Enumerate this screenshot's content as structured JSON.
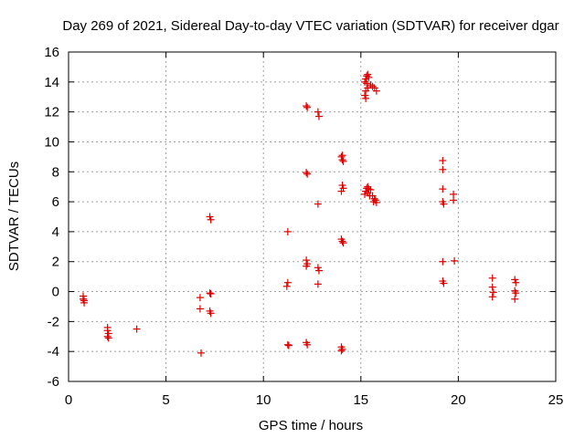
{
  "chart_data": {
    "type": "scatter",
    "title": "Day 269 of 2021, Sidereal Day-to-day VTEC variation (SDTVAR) for receiver dgar",
    "xlabel": "GPS time / hours",
    "ylabel": "SDTVAR / TECUs",
    "xlim": [
      0,
      25
    ],
    "ylim": [
      -6,
      16
    ],
    "xticks": [
      "0",
      "5",
      "10",
      "15",
      "20",
      "25"
    ],
    "yticks": [
      "-6",
      "-4",
      "-2",
      "0",
      "2",
      "4",
      "6",
      "8",
      "10",
      "12",
      "14",
      "16"
    ],
    "grid": true,
    "marker": "+",
    "series": [
      {
        "name": "SDTVAR",
        "color": "#e00000",
        "points": [
          [
            0.75,
            -0.3
          ],
          [
            0.75,
            -0.5
          ],
          [
            0.8,
            -0.6
          ],
          [
            0.8,
            -0.75
          ],
          [
            2.0,
            -2.4
          ],
          [
            2.0,
            -2.6
          ],
          [
            2.05,
            -2.8
          ],
          [
            2.0,
            -3.0
          ],
          [
            2.05,
            -3.1
          ],
          [
            3.5,
            -2.5
          ],
          [
            6.75,
            -0.4
          ],
          [
            6.75,
            -1.15
          ],
          [
            6.8,
            -4.1
          ],
          [
            7.25,
            5.0
          ],
          [
            7.3,
            4.8
          ],
          [
            7.25,
            -0.1
          ],
          [
            7.3,
            -0.15
          ],
          [
            7.25,
            -1.3
          ],
          [
            7.3,
            -1.45
          ],
          [
            11.25,
            4.0
          ],
          [
            11.25,
            0.6
          ],
          [
            11.2,
            0.35
          ],
          [
            11.25,
            -3.55
          ],
          [
            11.3,
            -3.6
          ],
          [
            12.2,
            12.4
          ],
          [
            12.25,
            12.3
          ],
          [
            12.2,
            7.95
          ],
          [
            12.25,
            7.85
          ],
          [
            12.2,
            2.1
          ],
          [
            12.25,
            1.85
          ],
          [
            12.2,
            1.7
          ],
          [
            12.2,
            -3.4
          ],
          [
            12.25,
            -3.55
          ],
          [
            12.8,
            12.0
          ],
          [
            12.85,
            11.7
          ],
          [
            12.8,
            5.85
          ],
          [
            12.8,
            1.6
          ],
          [
            12.85,
            1.4
          ],
          [
            12.8,
            0.5
          ],
          [
            14.0,
            9.0
          ],
          [
            14.05,
            8.8
          ],
          [
            14.1,
            8.7
          ],
          [
            14.05,
            9.1
          ],
          [
            14.05,
            7.1
          ],
          [
            14.1,
            6.9
          ],
          [
            14.0,
            6.7
          ],
          [
            14.0,
            3.5
          ],
          [
            14.05,
            3.35
          ],
          [
            14.1,
            3.25
          ],
          [
            14.0,
            -3.7
          ],
          [
            14.05,
            -3.85
          ],
          [
            14.0,
            -3.95
          ],
          [
            15.2,
            14.0
          ],
          [
            15.25,
            14.2
          ],
          [
            15.3,
            14.4
          ],
          [
            15.35,
            14.5
          ],
          [
            15.4,
            14.3
          ],
          [
            15.3,
            13.9
          ],
          [
            15.35,
            13.6
          ],
          [
            15.25,
            13.4
          ],
          [
            15.2,
            13.1
          ],
          [
            15.25,
            12.9
          ],
          [
            15.5,
            13.8
          ],
          [
            15.6,
            13.7
          ],
          [
            15.7,
            13.6
          ],
          [
            15.8,
            13.4
          ],
          [
            15.2,
            6.5
          ],
          [
            15.25,
            6.7
          ],
          [
            15.3,
            6.9
          ],
          [
            15.35,
            7.0
          ],
          [
            15.4,
            6.85
          ],
          [
            15.5,
            6.8
          ],
          [
            15.35,
            6.6
          ],
          [
            15.45,
            6.4
          ],
          [
            15.6,
            6.4
          ],
          [
            15.7,
            6.2
          ],
          [
            15.65,
            6.0
          ],
          [
            15.8,
            5.95
          ],
          [
            15.75,
            6.1
          ],
          [
            19.2,
            8.75
          ],
          [
            19.2,
            8.15
          ],
          [
            19.2,
            6.85
          ],
          [
            19.2,
            6.0
          ],
          [
            19.25,
            5.85
          ],
          [
            19.2,
            2.0
          ],
          [
            19.2,
            0.7
          ],
          [
            19.25,
            0.55
          ],
          [
            19.75,
            6.5
          ],
          [
            19.75,
            6.1
          ],
          [
            19.8,
            2.05
          ],
          [
            21.75,
            0.9
          ],
          [
            21.75,
            0.3
          ],
          [
            21.8,
            -0.05
          ],
          [
            21.75,
            -0.35
          ],
          [
            22.9,
            0.8
          ],
          [
            22.95,
            0.6
          ],
          [
            22.9,
            0.05
          ],
          [
            22.95,
            -0.1
          ],
          [
            22.9,
            -0.5
          ]
        ]
      }
    ]
  }
}
